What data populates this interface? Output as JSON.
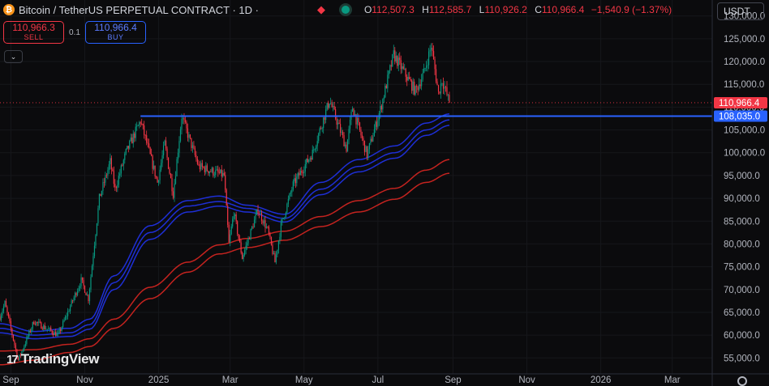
{
  "header": {
    "title": "Bitcoin / TetherUS PERPETUAL CONTRACT · 1D ·",
    "ohlc": {
      "o_label": "O",
      "o_value": "112,507.3",
      "h_label": "H",
      "h_value": "112,585.7",
      "l_label": "L",
      "l_value": "110,926.2",
      "c_label": "C",
      "c_value": "110,966.4",
      "change": "−1,540.9 (−1.37%)"
    }
  },
  "trade": {
    "sell_price": "110,966.3",
    "sell_label": "SELL",
    "spread": "0.1",
    "buy_price": "110,966.4",
    "buy_label": "BUY"
  },
  "currency": "USDT",
  "watermark": "TradingView",
  "colors": {
    "up": "#089981",
    "down": "#f23645",
    "background": "#0b0b0d",
    "blue_band": "#1e2fd6",
    "red_band": "#c4231f",
    "level_line": "#2962ff"
  },
  "icons": [
    "bitcoin-icon",
    "flag-icon",
    "status-dot-icon",
    "chevron-down-icon",
    "tradingview-logo-icon",
    "settings-icon"
  ],
  "chart_data": {
    "type": "candlestick",
    "y_axis_position": "right",
    "ylim": [
      51500,
      133500
    ],
    "xlim": [
      "2024-08-23",
      "2026-04-03"
    ],
    "y_ticks": [
      55000,
      60000,
      65000,
      70000,
      75000,
      80000,
      85000,
      90000,
      95000,
      100000,
      105000,
      110000,
      115000,
      120000,
      125000,
      130000
    ],
    "y_tick_labels": [
      "55,000.0",
      "60,000.0",
      "65,000.0",
      "70,000.0",
      "75,000.0",
      "80,000.0",
      "85,000.0",
      "90,000.0",
      "95,000.0",
      "100,000.0",
      "105,000.0",
      "110,000.0",
      "115,000.0",
      "120,000.0",
      "125,000.0",
      "130,000.0"
    ],
    "x_ticks": [
      "2024-09-01",
      "2024-11-01",
      "2025-01-01",
      "2025-03-01",
      "2025-05-01",
      "2025-07-01",
      "2025-09-01",
      "2025-11-01",
      "2026-01-01",
      "2026-03-01"
    ],
    "x_tick_labels": [
      "Sep",
      "Nov",
      "2025",
      "Mar",
      "May",
      "Jul",
      "Sep",
      "Nov",
      "2026",
      "Mar"
    ],
    "price_path": [
      [
        "2024-08-23",
        64000
      ],
      [
        "2024-08-27",
        67000
      ],
      [
        "2024-09-07",
        54500
      ],
      [
        "2024-09-20",
        63000
      ],
      [
        "2024-10-10",
        60000
      ],
      [
        "2024-10-29",
        72000
      ],
      [
        "2024-11-04",
        68000
      ],
      [
        "2024-11-13",
        90000
      ],
      [
        "2024-11-22",
        98000
      ],
      [
        "2024-11-26",
        92000
      ],
      [
        "2024-12-05",
        100000
      ],
      [
        "2024-12-17",
        107000
      ],
      [
        "2024-12-31",
        93500
      ],
      [
        "2025-01-06",
        102000
      ],
      [
        "2025-01-13",
        91000
      ],
      [
        "2025-01-20",
        108000
      ],
      [
        "2025-02-03",
        97000
      ],
      [
        "2025-02-24",
        95000
      ],
      [
        "2025-02-28",
        80000
      ],
      [
        "2025-03-04",
        87000
      ],
      [
        "2025-03-11",
        77000
      ],
      [
        "2025-03-24",
        87500
      ],
      [
        "2025-04-01",
        83000
      ],
      [
        "2025-04-07",
        76000
      ],
      [
        "2025-04-12",
        84000
      ],
      [
        "2025-04-22",
        93000
      ],
      [
        "2025-05-08",
        100000
      ],
      [
        "2025-05-22",
        111500
      ],
      [
        "2025-06-05",
        101000
      ],
      [
        "2025-06-10",
        110000
      ],
      [
        "2025-06-22",
        99500
      ],
      [
        "2025-07-03",
        109500
      ],
      [
        "2025-07-14",
        121500
      ],
      [
        "2025-07-24",
        117000
      ],
      [
        "2025-08-01",
        113500
      ],
      [
        "2025-08-08",
        117500
      ],
      [
        "2025-08-14",
        123500
      ],
      [
        "2025-08-20",
        113000
      ],
      [
        "2025-08-23",
        116000
      ],
      [
        "2025-08-29",
        111000
      ]
    ],
    "series": [
      {
        "type": "line",
        "color": "#1e2fd6",
        "points": [
          [
            "2024-08-23",
            62500
          ],
          [
            "2024-09-20",
            60800
          ],
          [
            "2024-10-20",
            61500
          ],
          [
            "2024-11-05",
            63500
          ],
          [
            "2024-11-25",
            73000
          ],
          [
            "2024-12-25",
            84000
          ],
          [
            "2025-01-25",
            89500
          ],
          [
            "2025-02-20",
            90500
          ],
          [
            "2025-03-15",
            88500
          ],
          [
            "2025-04-15",
            86500
          ],
          [
            "2025-05-15",
            93500
          ],
          [
            "2025-06-15",
            98500
          ],
          [
            "2025-07-15",
            101500
          ],
          [
            "2025-08-10",
            106500
          ],
          [
            "2025-08-29",
            108500
          ]
        ]
      },
      {
        "type": "line",
        "color": "#1e2fd6",
        "points": [
          [
            "2024-08-23",
            61500
          ],
          [
            "2024-09-20",
            60000
          ],
          [
            "2024-10-20",
            60500
          ],
          [
            "2024-11-05",
            62300
          ],
          [
            "2024-11-25",
            71500
          ],
          [
            "2024-12-25",
            82500
          ],
          [
            "2025-01-25",
            88300
          ],
          [
            "2025-02-20",
            89300
          ],
          [
            "2025-03-15",
            87800
          ],
          [
            "2025-04-15",
            85600
          ],
          [
            "2025-05-15",
            92000
          ],
          [
            "2025-06-15",
            97000
          ],
          [
            "2025-07-15",
            100000
          ],
          [
            "2025-08-10",
            105000
          ],
          [
            "2025-08-29",
            107200
          ]
        ]
      },
      {
        "type": "line",
        "color": "#1e2fd6",
        "points": [
          [
            "2024-08-23",
            60500
          ],
          [
            "2024-09-20",
            59200
          ],
          [
            "2024-10-20",
            59700
          ],
          [
            "2024-11-05",
            61300
          ],
          [
            "2024-11-25",
            70000
          ],
          [
            "2024-12-25",
            81000
          ],
          [
            "2025-01-25",
            87000
          ],
          [
            "2025-02-20",
            88300
          ],
          [
            "2025-03-15",
            87000
          ],
          [
            "2025-04-15",
            84800
          ],
          [
            "2025-05-15",
            90800
          ],
          [
            "2025-06-15",
            95800
          ],
          [
            "2025-07-15",
            98800
          ],
          [
            "2025-08-10",
            103800
          ],
          [
            "2025-08-29",
            106000
          ]
        ]
      },
      {
        "type": "line",
        "color": "#c4231f",
        "points": [
          [
            "2024-08-23",
            56500
          ],
          [
            "2024-09-20",
            56800
          ],
          [
            "2024-10-20",
            58000
          ],
          [
            "2024-11-05",
            59200
          ],
          [
            "2024-11-25",
            63500
          ],
          [
            "2024-12-25",
            70500
          ],
          [
            "2025-01-25",
            76000
          ],
          [
            "2025-02-20",
            79800
          ],
          [
            "2025-03-15",
            81200
          ],
          [
            "2025-04-15",
            82800
          ],
          [
            "2025-05-15",
            86000
          ],
          [
            "2025-06-15",
            89500
          ],
          [
            "2025-07-15",
            92200
          ],
          [
            "2025-08-10",
            96200
          ],
          [
            "2025-08-29",
            98500
          ]
        ]
      },
      {
        "type": "line",
        "color": "#c4231f",
        "points": [
          [
            "2024-08-23",
            53500
          ],
          [
            "2024-09-20",
            54500
          ],
          [
            "2024-10-20",
            56200
          ],
          [
            "2024-11-05",
            57500
          ],
          [
            "2024-11-25",
            61500
          ],
          [
            "2024-12-25",
            68000
          ],
          [
            "2025-01-25",
            73800
          ],
          [
            "2025-02-20",
            77800
          ],
          [
            "2025-03-15",
            79200
          ],
          [
            "2025-04-15",
            80800
          ],
          [
            "2025-05-15",
            83800
          ],
          [
            "2025-06-15",
            87000
          ],
          [
            "2025-07-15",
            89800
          ],
          [
            "2025-08-10",
            93500
          ],
          [
            "2025-08-29",
            95500
          ]
        ]
      }
    ],
    "horizontal_line": {
      "value": 108035.0,
      "label": "108,035.0",
      "start": "2024-12-17",
      "color": "#2962ff"
    },
    "last_price": {
      "value": 110966.4,
      "label": "110,966.4",
      "color": "#f23645"
    }
  }
}
